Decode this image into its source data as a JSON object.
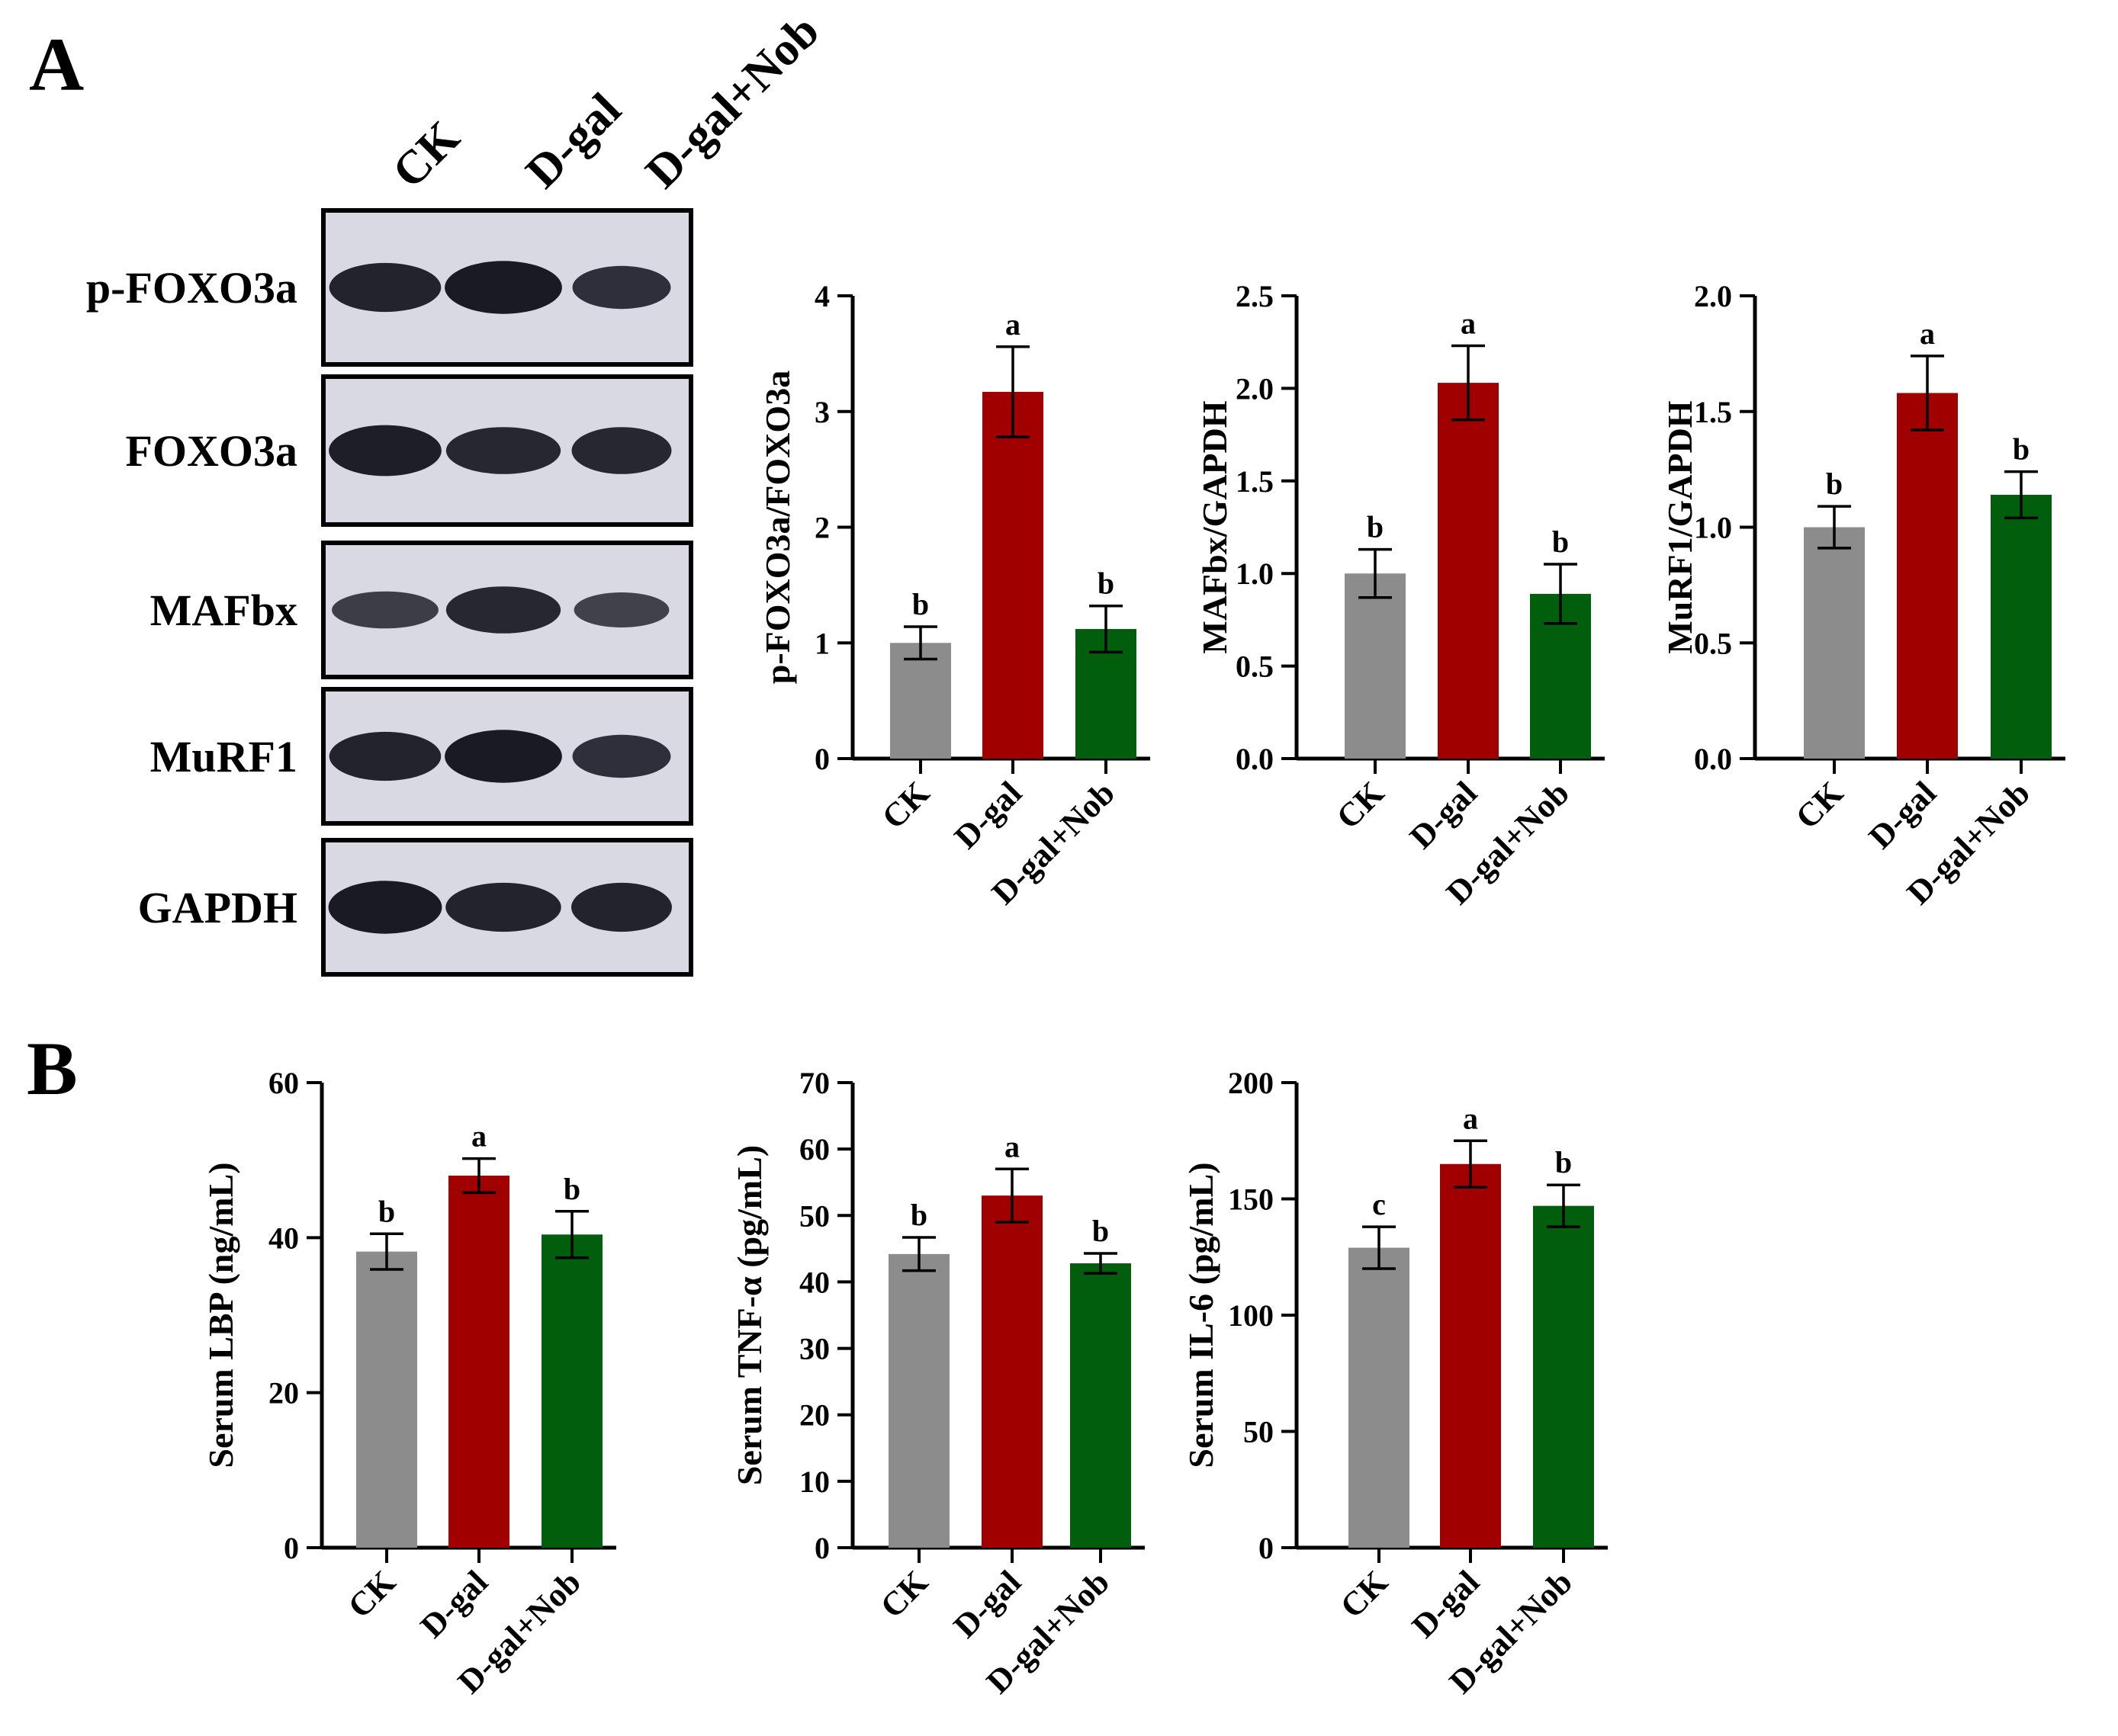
{
  "panels": {
    "a": "A",
    "b": "B"
  },
  "blot": {
    "lanes": [
      "CK",
      "D-gal",
      "D-gal+Nob"
    ],
    "proteins": [
      "p-FOXO3a",
      "FOXO3a",
      "MAFbx",
      "MuRF1",
      "GAPDH"
    ],
    "band_intensity": [
      [
        0.85,
        0.95,
        0.7
      ],
      [
        0.9,
        0.8,
        0.8
      ],
      [
        0.55,
        0.8,
        0.5
      ],
      [
        0.85,
        0.95,
        0.7
      ],
      [
        0.95,
        0.85,
        0.85
      ]
    ]
  },
  "colors": {
    "CK": "#8c8c8c",
    "D-gal": "#a00000",
    "D-gal+Nob": "#005e0c"
  },
  "chart_data": [
    {
      "id": "pfoxo",
      "type": "bar",
      "categories": [
        "CK",
        "D-gal",
        "D-gal+Nob"
      ],
      "values": [
        1.0,
        3.17,
        1.12
      ],
      "errors": [
        0.14,
        0.39,
        0.2
      ],
      "significance": [
        "b",
        "a",
        "b"
      ],
      "ylabel": "p-FOXO3a/FOXO3a",
      "ylim": [
        0,
        4
      ],
      "yticks": [
        0,
        1,
        2,
        3,
        4
      ],
      "tick_labels": [
        "0",
        "1",
        "2",
        "3",
        "4"
      ]
    },
    {
      "id": "mafbx",
      "type": "bar",
      "categories": [
        "CK",
        "D-gal",
        "D-gal+Nob"
      ],
      "values": [
        1.0,
        2.03,
        0.89
      ],
      "errors": [
        0.13,
        0.2,
        0.16
      ],
      "significance": [
        "b",
        "a",
        "b"
      ],
      "ylabel": "MAFbx/GAPDH",
      "ylim": [
        0,
        2.5
      ],
      "yticks": [
        0,
        0.5,
        1,
        1.5,
        2,
        2.5
      ],
      "tick_labels": [
        "0.0",
        "0.5",
        "1.0",
        "1.5",
        "2.0",
        "2.5"
      ]
    },
    {
      "id": "murf1",
      "type": "bar",
      "categories": [
        "CK",
        "D-gal",
        "D-gal+Nob"
      ],
      "values": [
        1.0,
        1.58,
        1.14
      ],
      "errors": [
        0.09,
        0.16,
        0.1
      ],
      "significance": [
        "b",
        "a",
        "b"
      ],
      "ylabel": "MuRF1/GAPDH",
      "ylim": [
        0,
        2
      ],
      "yticks": [
        0,
        0.5,
        1,
        1.5,
        2
      ],
      "tick_labels": [
        "0.0",
        "0.5",
        "1.0",
        "1.5",
        "2.0"
      ]
    },
    {
      "id": "lbp",
      "type": "bar",
      "categories": [
        "CK",
        "D-gal",
        "D-gal+Nob"
      ],
      "values": [
        38.2,
        48.0,
        40.4
      ],
      "errors": [
        2.3,
        2.2,
        3.0
      ],
      "significance": [
        "b",
        "a",
        "b"
      ],
      "ylabel": "Serum LBP (ng/mL)",
      "ylim": [
        0,
        60
      ],
      "yticks": [
        0,
        20,
        40,
        60
      ],
      "tick_labels": [
        "0",
        "20",
        "40",
        "60"
      ]
    },
    {
      "id": "tnf",
      "type": "bar",
      "categories": [
        "CK",
        "D-gal",
        "D-gal+Nob"
      ],
      "values": [
        44.2,
        53.0,
        42.8
      ],
      "errors": [
        2.5,
        4.0,
        1.5
      ],
      "significance": [
        "b",
        "a",
        "b"
      ],
      "ylabel": "Serum TNF-α (pg/mL)",
      "ylim": [
        0,
        70
      ],
      "yticks": [
        0,
        10,
        20,
        30,
        40,
        50,
        60,
        70
      ],
      "tick_labels": [
        "0",
        "10",
        "20",
        "30",
        "40",
        "50",
        "60",
        "70"
      ]
    },
    {
      "id": "il6",
      "type": "bar",
      "categories": [
        "CK",
        "D-gal",
        "D-gal+Nob"
      ],
      "values": [
        129,
        165,
        147
      ],
      "errors": [
        9,
        10,
        9
      ],
      "significance": [
        "c",
        "a",
        "b"
      ],
      "ylabel": "Serum IL-6 (pg/mL)",
      "ylim": [
        0,
        200
      ],
      "yticks": [
        0,
        50,
        100,
        150,
        200
      ],
      "tick_labels": [
        "0",
        "50",
        "100",
        "150",
        "200"
      ]
    }
  ]
}
